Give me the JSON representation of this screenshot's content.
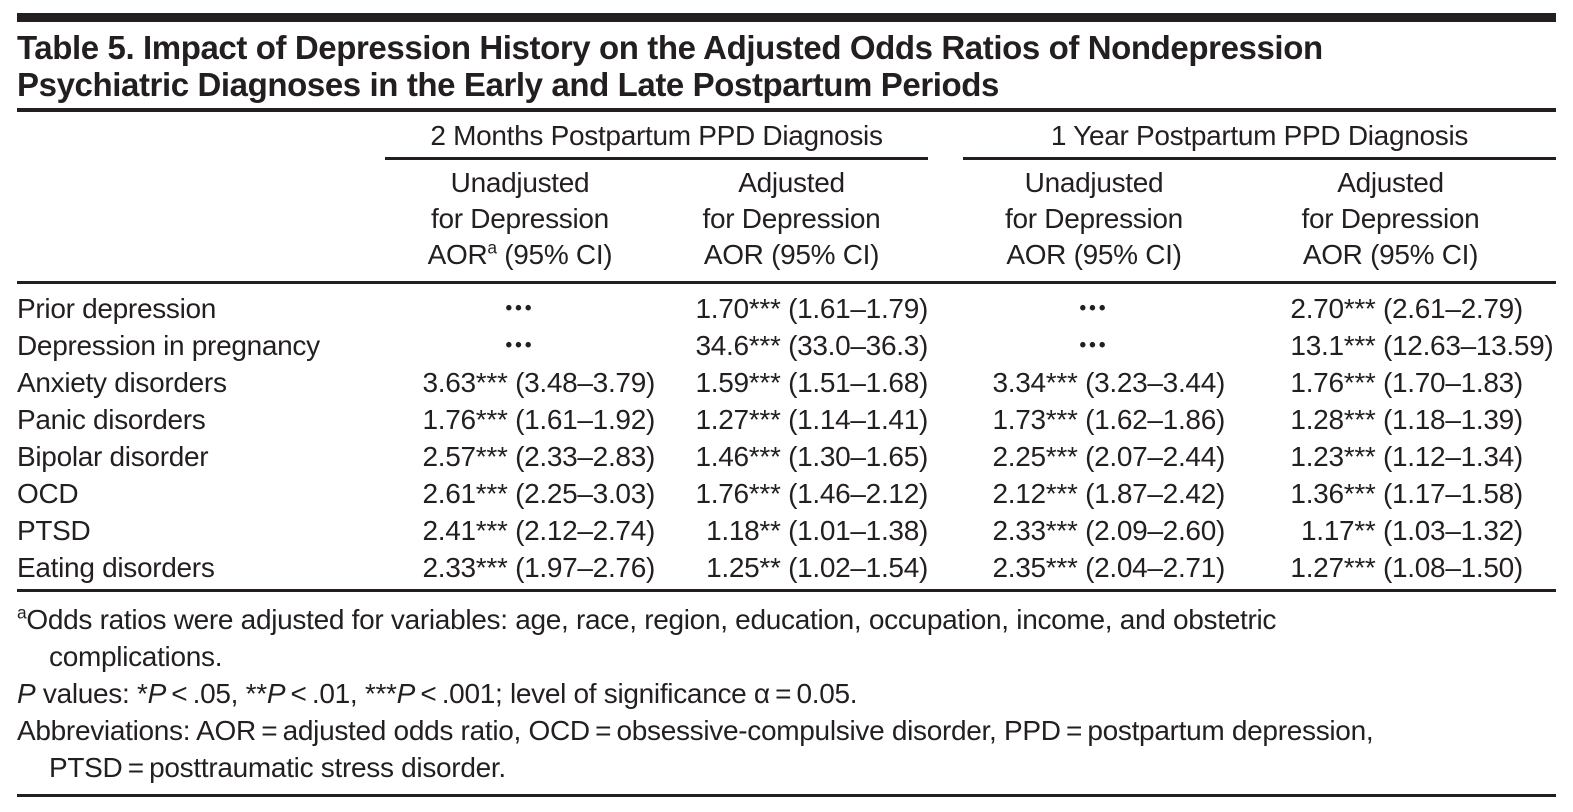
{
  "title": {
    "line1": "Table 5. Impact of Depression History on the Adjusted Odds Ratios of Nondepression",
    "line2": "Psychiatric Diagnoses in the Early and Late Postpartum Periods"
  },
  "table": {
    "groups": [
      "2 Months Postpartum PPD Diagnosis",
      "1 Year Postpartum PPD Diagnosis"
    ],
    "columns": [
      {
        "line1": "Unadjusted",
        "line2": "for Depression",
        "line3_pre": "AOR",
        "line3_sup": "a",
        "line3_post": " (95% CI)"
      },
      {
        "line1": "Adjusted",
        "line2": "for Depression",
        "line3_pre": "AOR (95% CI)"
      },
      {
        "line1": "Unadjusted",
        "line2": "for Depression",
        "line3_pre": "AOR (95% CI)"
      },
      {
        "line1": "Adjusted",
        "line2": "for Depression",
        "line3_pre": "AOR (95% CI)"
      }
    ],
    "ellipsis": "•••",
    "rows": [
      {
        "label": "Prior depression",
        "cells": [
          {
            "dots": "•••"
          },
          {
            "aor": "1.70***",
            "ci": "(1.61–1.79)"
          },
          {
            "dots": "•••"
          },
          {
            "aor": "2.70***",
            "ci": "(2.61–2.79)"
          }
        ]
      },
      {
        "label": "Depression in pregnancy",
        "cells": [
          {
            "dots": "•••"
          },
          {
            "aor": "34.6***",
            "ci": "(33.0–36.3)"
          },
          {
            "dots": "•••"
          },
          {
            "aor": "13.1***",
            "ci": "(12.63–13.59)"
          }
        ]
      },
      {
        "label": "Anxiety disorders",
        "cells": [
          {
            "aor": "3.63***",
            "ci": "(3.48–3.79)"
          },
          {
            "aor": "1.59***",
            "ci": "(1.51–1.68)"
          },
          {
            "aor": "3.34***",
            "ci": "(3.23–3.44)"
          },
          {
            "aor": "1.76***",
            "ci": "(1.70–1.83)"
          }
        ]
      },
      {
        "label": "Panic disorders",
        "cells": [
          {
            "aor": "1.76***",
            "ci": "(1.61–1.92)"
          },
          {
            "aor": "1.27***",
            "ci": "(1.14–1.41)"
          },
          {
            "aor": "1.73***",
            "ci": "(1.62–1.86)"
          },
          {
            "aor": "1.28***",
            "ci": "(1.18–1.39)"
          }
        ]
      },
      {
        "label": "Bipolar disorder",
        "cells": [
          {
            "aor": "2.57***",
            "ci": "(2.33–2.83)"
          },
          {
            "aor": "1.46***",
            "ci": "(1.30–1.65)"
          },
          {
            "aor": "2.25***",
            "ci": "(2.07–2.44)"
          },
          {
            "aor": "1.23***",
            "ci": "(1.12–1.34)"
          }
        ]
      },
      {
        "label": "OCD",
        "cells": [
          {
            "aor": "2.61***",
            "ci": "(2.25–3.03)"
          },
          {
            "aor": "1.76***",
            "ci": "(1.46–2.12)"
          },
          {
            "aor": "2.12***",
            "ci": "(1.87–2.42)"
          },
          {
            "aor": "1.36***",
            "ci": "(1.17–1.58)"
          }
        ]
      },
      {
        "label": "PTSD",
        "cells": [
          {
            "aor": "2.41***",
            "ci": "(2.12–2.74)"
          },
          {
            "aor": "1.18**",
            "ci": "(1.01–1.38)"
          },
          {
            "aor": "2.33***",
            "ci": "(2.09–2.60)"
          },
          {
            "aor": "1.17**",
            "ci": "(1.03–1.32)"
          }
        ]
      },
      {
        "label": "Eating disorders",
        "cells": [
          {
            "aor": "2.33***",
            "ci": "(1.97–2.76)"
          },
          {
            "aor": "1.25**",
            "ci": "(1.02–1.54)"
          },
          {
            "aor": "2.35***",
            "ci": "(2.04–2.71)"
          },
          {
            "aor": "1.27***",
            "ci": "(1.08–1.50)"
          }
        ]
      }
    ]
  },
  "footnotes": {
    "a": {
      "sup": "a",
      "line1": "Odds ratios were adjusted for variables: age, race, region, education, occupation, income, and obstetric",
      "line2": "complications."
    },
    "p": [
      "P",
      " values: *",
      "P",
      " < .05, **",
      "P",
      " < .01, ***",
      "P",
      " < .001; level of significance α = 0.05."
    ],
    "abbr": {
      "line1": "Abbreviations: AOR = adjusted odds ratio, OCD = obsessive-compulsive disorder, PPD = postpartum depression,",
      "line2": "PTSD = posttraumatic stress disorder."
    }
  }
}
